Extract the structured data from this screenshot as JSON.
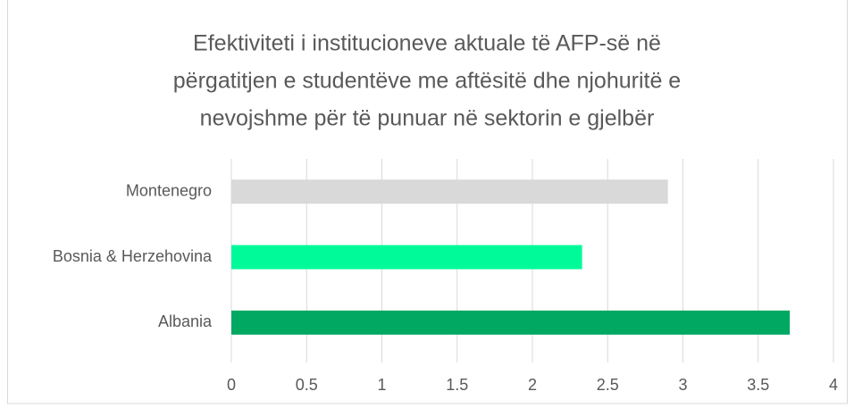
{
  "chart_data": {
    "type": "barh",
    "title": [
      "Efektiviteti i institucioneve aktuale të AFP-së në",
      "përgatitjen e studentëve me aftësitë dhe njohuritë e",
      "nevojshme për të punuar në sektorin e gjelbër"
    ],
    "categories": [
      "Montenegro",
      "Bosnia & Herzehovina",
      "Albania"
    ],
    "values": [
      2.9,
      2.33,
      3.71
    ],
    "colors": [
      "#d9d9d9",
      "#00fa9a",
      "#00a862"
    ],
    "xlim": [
      0,
      4
    ],
    "xticks": [
      0,
      0.5,
      1,
      1.5,
      2,
      2.5,
      3,
      3.5,
      4
    ],
    "grid": true
  }
}
